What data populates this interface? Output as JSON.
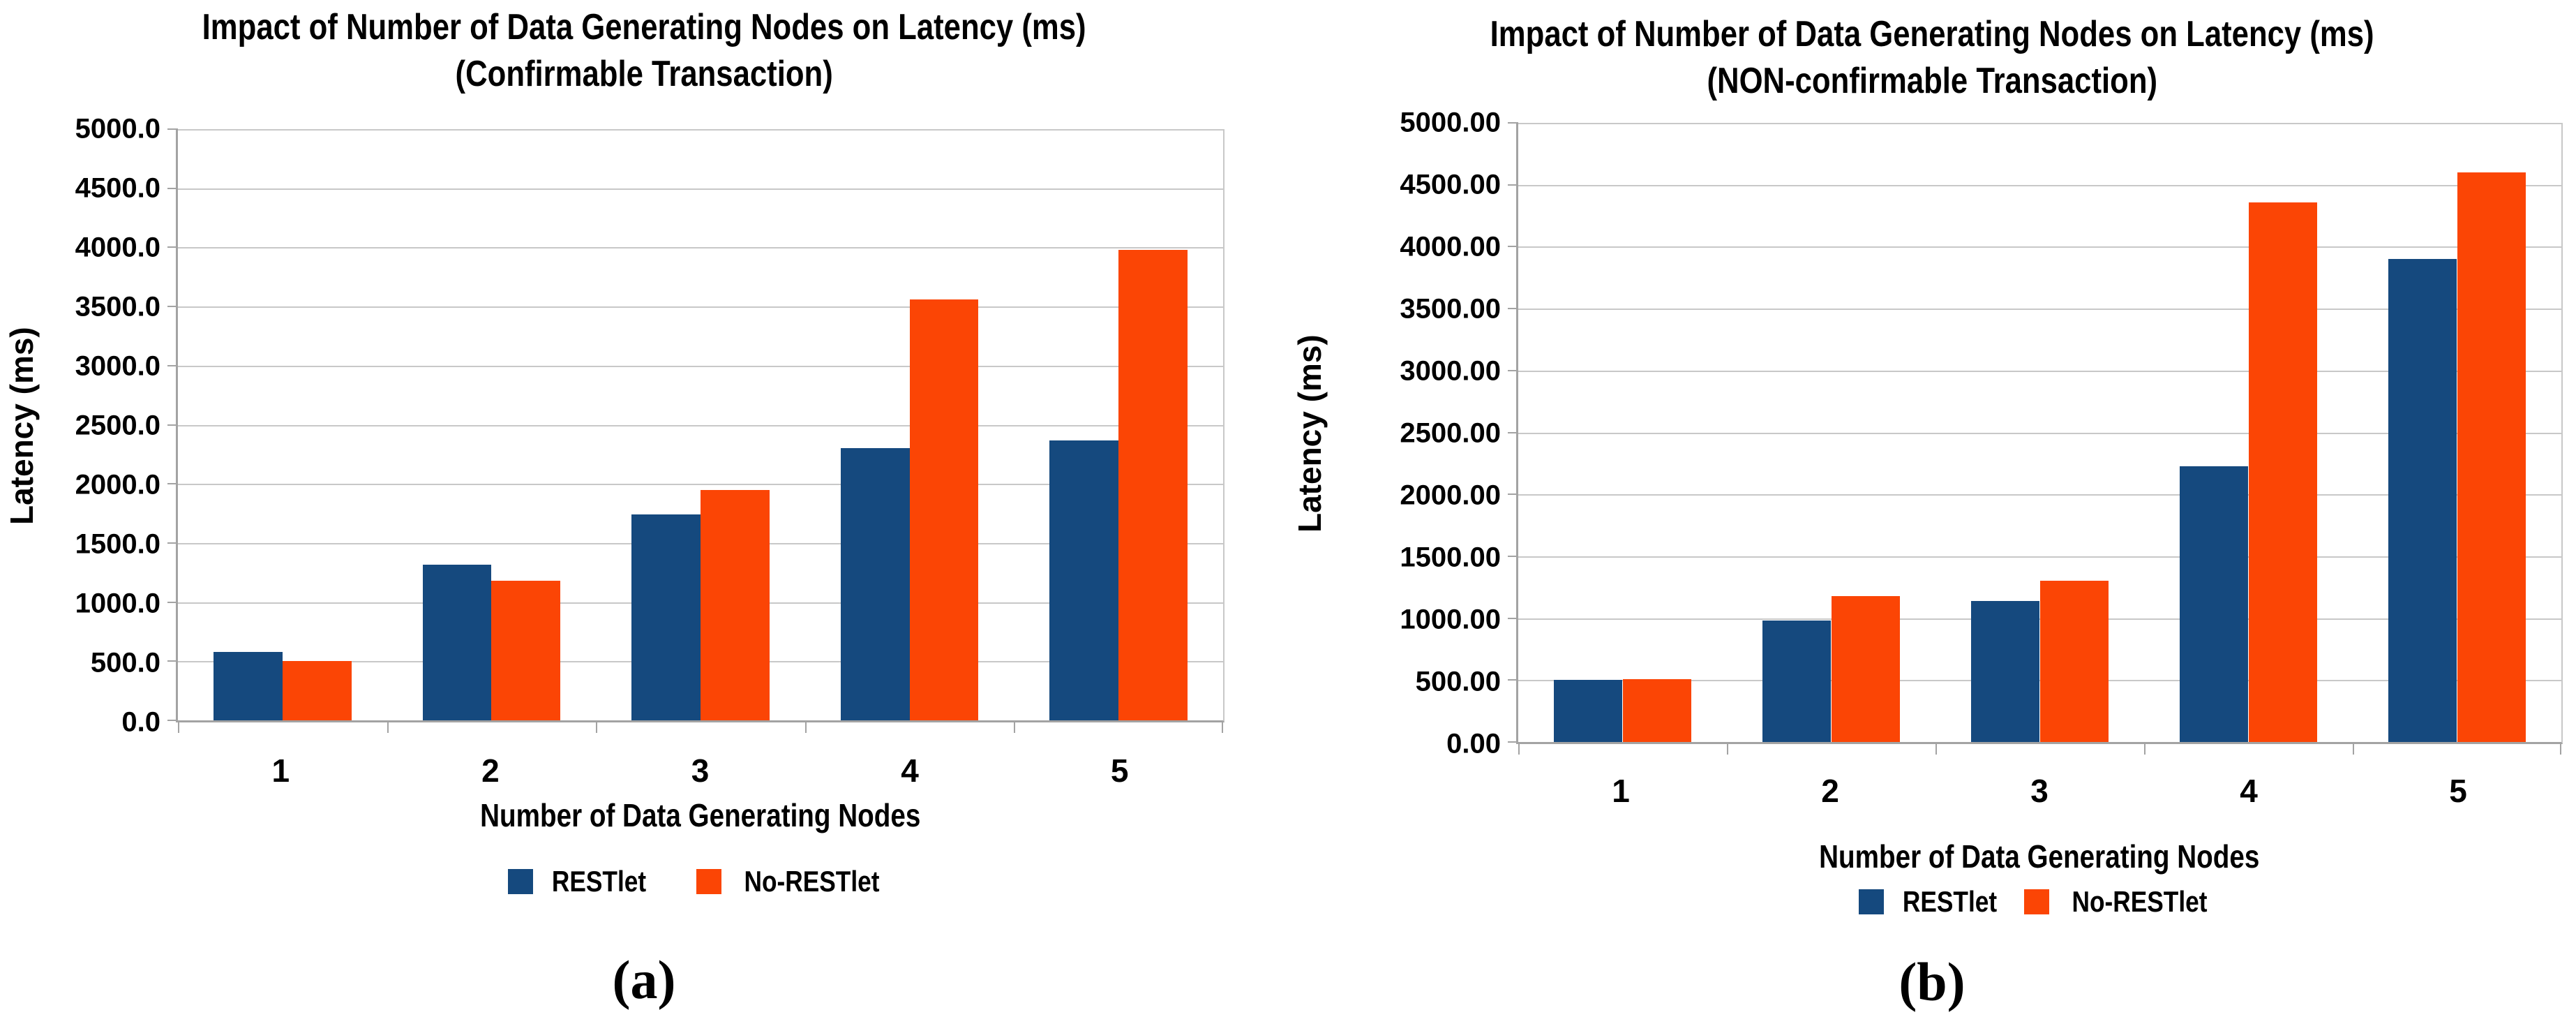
{
  "colors": {
    "restlet": "#15497E",
    "no_restlet": "#FB4505",
    "gridline": "#C8C8C8",
    "axis": "#A3A3A3",
    "text": "#000000",
    "background": "#FFFFFF"
  },
  "chart_data": [
    {
      "type": "bar",
      "caption": "(a)",
      "title_line1": "Impact of Number of Data Generating Nodes on Latency (ms)",
      "title_line2": "(Confirmable Transaction)",
      "xlabel": "Number of Data Generating Nodes",
      "ylabel": "Latency (ms)",
      "ylim": [
        0,
        5000
      ],
      "y_tick_step": 500,
      "y_tick_labels": [
        "5000.0",
        "4500.0",
        "4000.0",
        "3500.0",
        "3000.0",
        "2500.0",
        "2000.0",
        "1500.0",
        "1000.0",
        "500.0",
        "0.0"
      ],
      "categories": [
        "1",
        "2",
        "3",
        "4",
        "5"
      ],
      "series": [
        {
          "name": "RESTlet",
          "color": "#15497E",
          "values": [
            580,
            1320,
            1740,
            2300,
            2370
          ]
        },
        {
          "name": "No-RESTlet",
          "color": "#FB4505",
          "values": [
            505,
            1180,
            1950,
            3560,
            3980
          ]
        }
      ],
      "grid": true,
      "legend_position": "bottom"
    },
    {
      "type": "bar",
      "caption": "(b)",
      "title_line1": "Impact of Number of Data Generating Nodes on Latency (ms)",
      "title_line2": "(NON-confirmable Transaction)",
      "xlabel": "Number of Data Generating Nodes",
      "ylabel": "Latency (ms)",
      "ylim": [
        0,
        5000
      ],
      "y_tick_step": 500,
      "y_tick_labels": [
        "5000.00",
        "4500.00",
        "4000.00",
        "3500.00",
        "3000.00",
        "2500.00",
        "2000.00",
        "1500.00",
        "1000.00",
        "500.00",
        "0.00"
      ],
      "categories": [
        "1",
        "2",
        "3",
        "4",
        "5"
      ],
      "series": [
        {
          "name": "RESTlet",
          "color": "#15497E",
          "values": [
            500,
            980,
            1140,
            2230,
            3900
          ]
        },
        {
          "name": "No-RESTlet",
          "color": "#FB4505",
          "values": [
            510,
            1180,
            1300,
            4360,
            4600
          ]
        }
      ],
      "grid": true,
      "legend_position": "bottom"
    }
  ]
}
